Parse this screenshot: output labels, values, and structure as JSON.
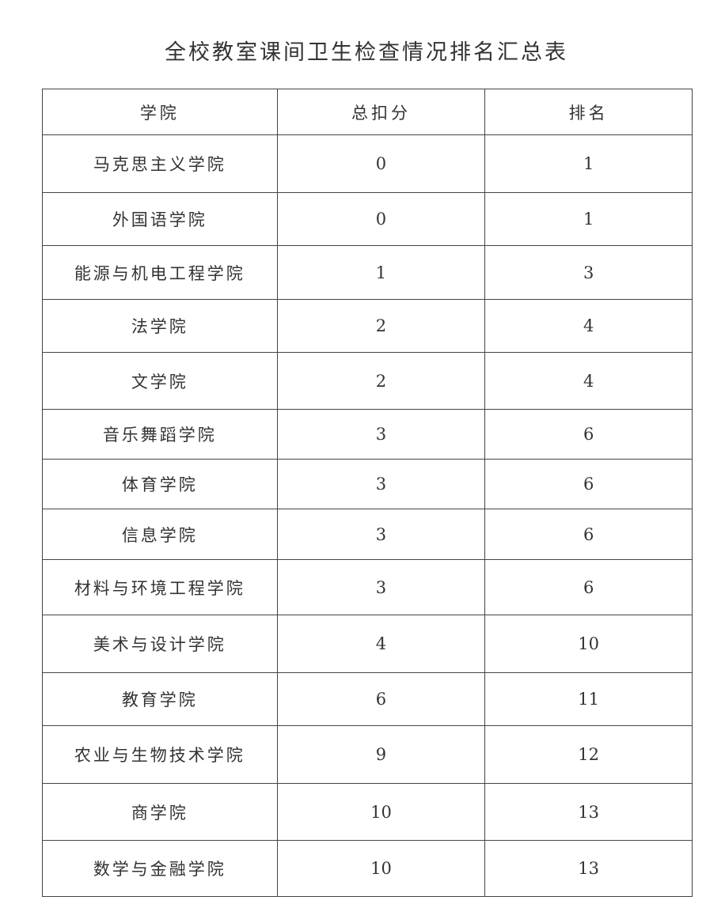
{
  "title": "全校教室课间卫生检查情况排名汇总表",
  "headers": [
    "学院",
    "总扣分",
    "排名"
  ],
  "rows": [
    [
      "马克思主义学院",
      "0",
      "1"
    ],
    [
      "外国语学院",
      "0",
      "1"
    ],
    [
      "能源与机电工程学院",
      "1",
      "3"
    ],
    [
      "法学院",
      "2",
      "4"
    ],
    [
      "文学院",
      "2",
      "4"
    ],
    [
      "音乐舞蹈学院",
      "3",
      "6"
    ],
    [
      "体育学院",
      "3",
      "6"
    ],
    [
      "信息学院",
      "3",
      "6"
    ],
    [
      "材料与环境工程学院",
      "3",
      "6"
    ],
    [
      "美术与设计学院",
      "4",
      "10"
    ],
    [
      "教育学院",
      "6",
      "11"
    ],
    [
      "农业与生物技术学院",
      "9",
      "12"
    ],
    [
      "商学院",
      "10",
      "13"
    ],
    [
      "数学与金融学院",
      "10",
      "13"
    ]
  ]
}
